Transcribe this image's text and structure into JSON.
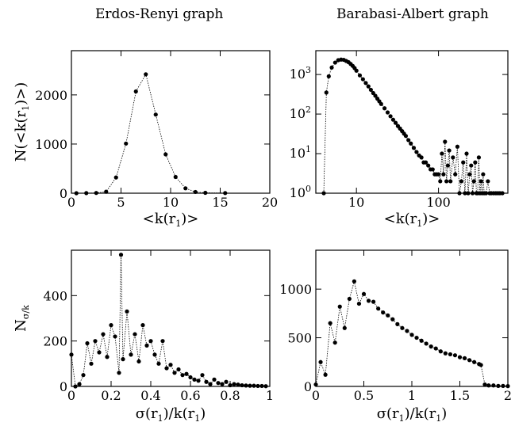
{
  "titles": {
    "left": "Erdos-Renyi graph",
    "right": "Barabasi-Albert graph"
  },
  "labels": {
    "top_y": "N(<k(r1)>)",
    "top_x": "<k(r1)>",
    "bottom_y": "Nσ/k",
    "bottom_x": "σ(r1)/k(r1)"
  },
  "chart_data": [
    {
      "id": "er_top",
      "type": "scatter",
      "title": "Erdos-Renyi graph",
      "xlabel": "<k(r1)>",
      "ylabel": "N(<k(r1)>)",
      "xlim": [
        0,
        20
      ],
      "ylim": [
        0,
        2900
      ],
      "xticks": [
        0,
        5,
        10,
        15,
        20
      ],
      "yticks": [
        0,
        1000,
        2000
      ],
      "x": [
        0.5,
        1.5,
        2.5,
        3.5,
        4.5,
        5.5,
        6.5,
        7.5,
        8.5,
        9.5,
        10.5,
        11.5,
        12.5,
        13.5,
        15.5
      ],
      "y": [
        0,
        2,
        5,
        30,
        320,
        1010,
        2070,
        2420,
        1600,
        790,
        330,
        100,
        25,
        8,
        3
      ]
    },
    {
      "id": "ba_top",
      "type": "scatter",
      "title": "Barabasi-Albert graph",
      "xlabel": "<k(r1)>",
      "ylabel": "",
      "xscale": "log",
      "yscale": "log",
      "xlim": [
        3.2,
        700
      ],
      "ylim": [
        1,
        4000
      ],
      "xticks": [
        10,
        100
      ],
      "yticks": [
        1,
        10,
        100,
        1000
      ],
      "x": [
        4.0,
        4.3,
        4.6,
        5.0,
        5.5,
        6.0,
        6.5,
        7.0,
        7.5,
        8.0,
        8.5,
        9.0,
        9.5,
        10,
        11,
        12,
        13,
        14,
        15,
        16,
        17,
        18,
        19,
        20,
        22,
        24,
        26,
        28,
        30,
        32,
        34,
        36,
        38,
        40,
        43,
        46,
        50,
        54,
        58,
        62,
        66,
        70,
        75,
        80,
        85,
        90,
        95,
        100,
        105,
        110,
        115,
        120,
        125,
        130,
        135,
        140,
        150,
        160,
        170,
        180,
        190,
        200,
        210,
        220,
        230,
        240,
        250,
        260,
        270,
        280,
        290,
        300,
        310,
        320,
        330,
        340,
        350,
        360,
        380,
        400,
        420,
        440,
        470,
        500,
        530,
        560,
        600
      ],
      "y": [
        1,
        350,
        900,
        1500,
        2000,
        2300,
        2380,
        2350,
        2200,
        2050,
        1850,
        1650,
        1450,
        1250,
        950,
        760,
        610,
        500,
        410,
        340,
        290,
        245,
        210,
        180,
        140,
        110,
        88,
        72,
        60,
        50,
        43,
        37,
        32,
        28,
        22,
        18,
        14,
        11,
        9,
        8,
        6,
        6,
        5,
        4,
        4,
        3,
        3,
        3,
        2,
        10,
        3,
        20,
        2,
        5,
        12,
        2,
        8,
        3,
        15,
        1,
        2,
        6,
        1,
        10,
        1,
        3,
        5,
        1,
        2,
        6,
        1,
        1,
        8,
        1,
        2,
        1,
        3,
        1,
        1,
        2,
        1,
        1,
        1,
        1,
        1,
        1,
        1
      ]
    },
    {
      "id": "er_bottom",
      "type": "scatter",
      "title": "",
      "xlabel": "σ(r1)/k(r1)",
      "ylabel": "Nσ/k",
      "xlim": [
        0,
        1
      ],
      "ylim": [
        0,
        600
      ],
      "xticks": [
        0,
        0.2,
        0.4,
        0.6,
        0.8,
        1
      ],
      "yticks": [
        0,
        200,
        400
      ],
      "x": [
        0.0,
        0.02,
        0.04,
        0.06,
        0.08,
        0.1,
        0.12,
        0.14,
        0.16,
        0.18,
        0.2,
        0.22,
        0.24,
        0.25,
        0.26,
        0.28,
        0.3,
        0.32,
        0.34,
        0.36,
        0.38,
        0.4,
        0.42,
        0.44,
        0.46,
        0.48,
        0.5,
        0.52,
        0.54,
        0.56,
        0.58,
        0.6,
        0.62,
        0.64,
        0.66,
        0.68,
        0.7,
        0.72,
        0.74,
        0.76,
        0.78,
        0.8,
        0.82,
        0.84,
        0.86,
        0.88,
        0.9,
        0.92,
        0.94,
        0.96,
        0.98
      ],
      "y": [
        140,
        0,
        10,
        50,
        190,
        100,
        200,
        150,
        230,
        130,
        270,
        220,
        60,
        580,
        120,
        330,
        140,
        230,
        110,
        270,
        180,
        200,
        140,
        100,
        200,
        80,
        95,
        60,
        75,
        50,
        55,
        40,
        30,
        25,
        50,
        20,
        10,
        30,
        15,
        10,
        20,
        5,
        10,
        8,
        5,
        4,
        3,
        3,
        2,
        2,
        1
      ]
    },
    {
      "id": "ba_bottom",
      "type": "scatter",
      "title": "",
      "xlabel": "σ(r1)/k(r1)",
      "ylabel": "",
      "xlim": [
        0,
        2
      ],
      "ylim": [
        0,
        1400
      ],
      "xticks": [
        0,
        0.5,
        1,
        1.5,
        2
      ],
      "yticks": [
        0,
        500,
        1000
      ],
      "x": [
        0.0,
        0.05,
        0.1,
        0.15,
        0.2,
        0.25,
        0.3,
        0.35,
        0.4,
        0.45,
        0.5,
        0.55,
        0.6,
        0.65,
        0.7,
        0.75,
        0.8,
        0.85,
        0.9,
        0.95,
        1.0,
        1.05,
        1.1,
        1.15,
        1.2,
        1.25,
        1.3,
        1.35,
        1.4,
        1.45,
        1.5,
        1.55,
        1.6,
        1.65,
        1.7,
        1.72,
        1.76,
        1.8,
        1.85,
        1.9,
        1.95,
        2.0
      ],
      "y": [
        20,
        250,
        120,
        650,
        450,
        820,
        600,
        900,
        1080,
        850,
        950,
        880,
        870,
        800,
        760,
        730,
        690,
        640,
        600,
        570,
        530,
        500,
        470,
        440,
        410,
        390,
        360,
        340,
        330,
        320,
        300,
        290,
        270,
        250,
        230,
        220,
        20,
        10,
        10,
        5,
        5,
        3
      ]
    }
  ]
}
